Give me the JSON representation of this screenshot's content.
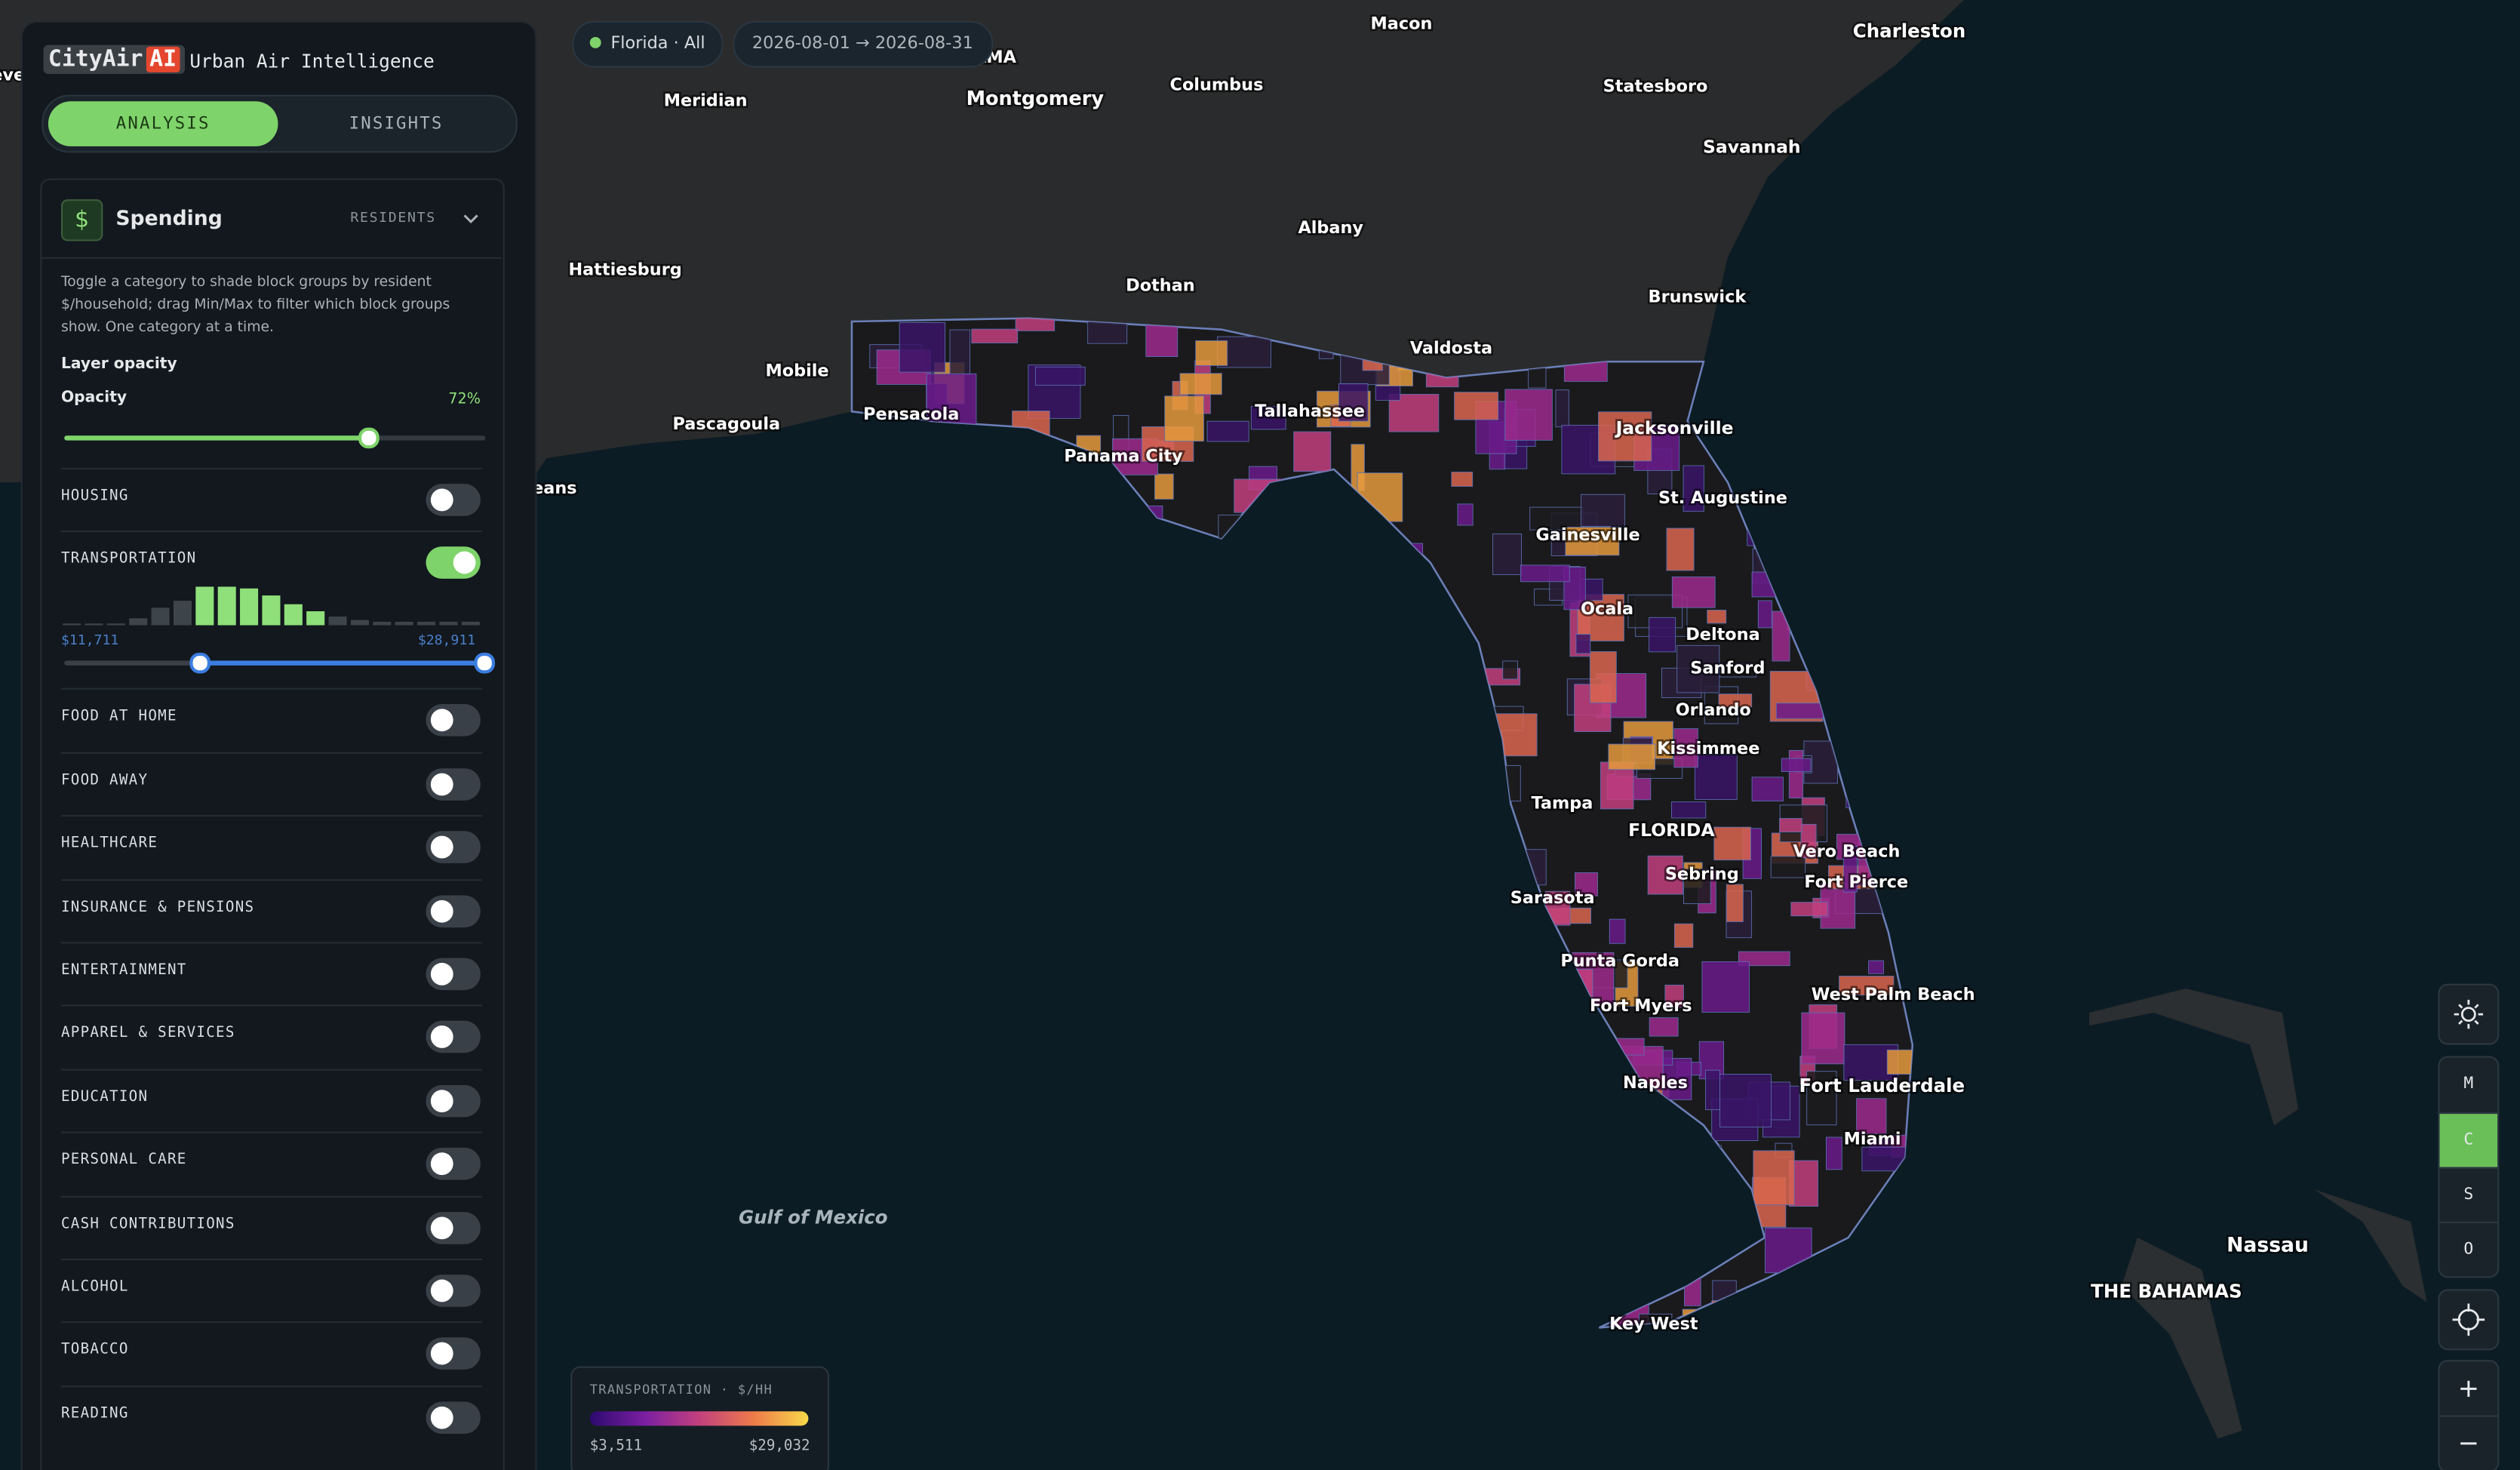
{
  "brand": {
    "name": "CityAir",
    "badge": "AI",
    "tagline": "Urban Air Intelligence"
  },
  "tabs": [
    "ANALYSIS",
    "INSIGHTS"
  ],
  "status": {
    "region": "Florida · All",
    "date_range": "2026-08-01 → 2026-08-31"
  },
  "panel": {
    "icon": "$",
    "title": "Spending",
    "mode": "RESIDENTS",
    "description": "Toggle a category to shade block groups by resident $/household; drag Min/Max to filter which block groups show. One category at a time.",
    "opacity_heading": "Layer opacity",
    "opacity_label": "Opacity",
    "opacity_value": "72%"
  },
  "categories": [
    {
      "name": "HOUSING",
      "on": false
    },
    {
      "name": "TRANSPORTATION",
      "on": true
    },
    {
      "name": "FOOD AT HOME",
      "on": false
    },
    {
      "name": "FOOD AWAY",
      "on": false
    },
    {
      "name": "HEALTHCARE",
      "on": false
    },
    {
      "name": "INSURANCE & PENSIONS",
      "on": false
    },
    {
      "name": "ENTERTAINMENT",
      "on": false
    },
    {
      "name": "APPAREL & SERVICES",
      "on": false
    },
    {
      "name": "EDUCATION",
      "on": false
    },
    {
      "name": "PERSONAL CARE",
      "on": false
    },
    {
      "name": "CASH CONTRIBUTIONS",
      "on": false
    },
    {
      "name": "ALCOHOL",
      "on": false
    },
    {
      "name": "TOBACCO",
      "on": false
    },
    {
      "name": "READING",
      "on": false
    }
  ],
  "histogram": {
    "counts": [
      1,
      1,
      1,
      4,
      10,
      14,
      22,
      22,
      21,
      17,
      12,
      8,
      5,
      3,
      2,
      2,
      2,
      2,
      2
    ],
    "min_label": "$11,711",
    "max_label": "$28,911"
  },
  "legend": {
    "title": "TRANSPORTATION · $/HH",
    "min": "$3,511",
    "max": "$29,032"
  },
  "map_controls": [
    "M",
    "C",
    "S",
    "O"
  ],
  "active_control": "C",
  "map_labels": [
    "Macon",
    "Charleston",
    "AMA",
    "Columbus",
    "Statesboro",
    "Meridian",
    "Montgomery",
    "eve",
    "Savannah",
    "Albany",
    "Hattiesburg",
    "Dothan",
    "Brunswick",
    "Valdosta",
    "Mobile",
    "Pascagoula",
    "Pensacola",
    "Tallahassee",
    "Jacksonville",
    "Panama City",
    "eans",
    "St. Augustine",
    "Gainesville",
    "Ocala",
    "Deltona",
    "Sanford",
    "Orlando",
    "Kissimmee",
    "Tampa",
    "FLORIDA",
    "Vero Beach",
    "Fort Pierce",
    "Sebring",
    "Sarasota",
    "Punta Gorda",
    "West Palm Beach",
    "Fort Myers",
    "Naples",
    "Fort Lauderdale",
    "Miami",
    "Gulf of Mexico",
    "Nassau",
    "THE BAHAMAS",
    "Key West"
  ]
}
